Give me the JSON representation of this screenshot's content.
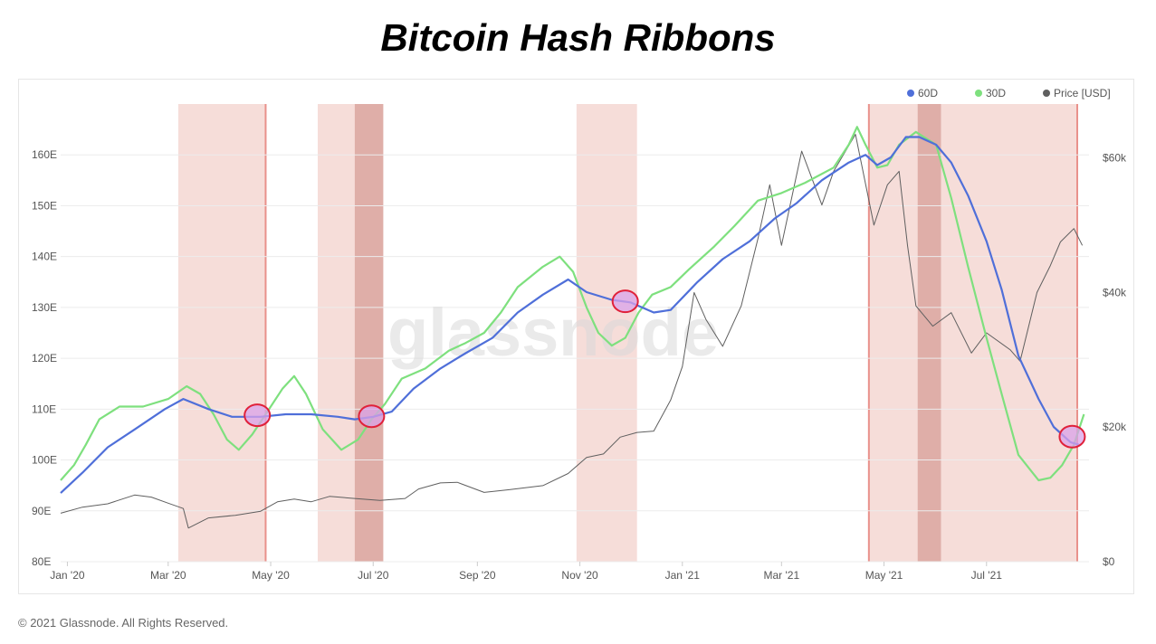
{
  "title": "Bitcoin Hash Ribbons",
  "watermark": "glassnode",
  "footer": "© 2021 Glassnode. All Rights Reserved.",
  "colors": {
    "sma60": "#4f6fd9",
    "sma30": "#7ee07e",
    "price": "#5f5f5f",
    "capitulation_light": "#f6ddd9",
    "capitulation_dark": "#dfaea8",
    "marker_fill": "#d9a2e8",
    "marker_stroke": "#e0213a"
  },
  "chart_data": {
    "type": "line",
    "title": "Bitcoin Hash Ribbons",
    "x_range": [
      "2019-12-28",
      "2021-08-31"
    ],
    "x_ticks": [
      "Jan '20",
      "Mar '20",
      "May '20",
      "Jul '20",
      "Sep '20",
      "Nov '20",
      "Jan '21",
      "Mar '21",
      "May '21",
      "Jul '21"
    ],
    "x_tick_dates": [
      "2020-01-01",
      "2020-03-01",
      "2020-05-01",
      "2020-07-01",
      "2020-09-01",
      "2020-11-01",
      "2021-01-01",
      "2021-03-01",
      "2021-05-01",
      "2021-07-01"
    ],
    "y_left": {
      "label": "",
      "ticks": [
        "80E",
        "90E",
        "100E",
        "110E",
        "120E",
        "130E",
        "140E",
        "150E",
        "160E"
      ],
      "range": [
        80,
        170
      ]
    },
    "y_right": {
      "label": "",
      "ticks": [
        "$0",
        "$20k",
        "$40k",
        "$60k"
      ],
      "tick_values": [
        0,
        20000,
        40000,
        60000
      ],
      "range": [
        0,
        68000
      ]
    },
    "legend": {
      "placement": "top-right",
      "items": [
        "60D",
        "30D",
        "Price [USD]"
      ]
    },
    "grid": "horizontal",
    "series": [
      {
        "name": "60D",
        "axis": "left",
        "points": [
          [
            "2019-12-28",
            93.5
          ],
          [
            "2020-01-10",
            97.5
          ],
          [
            "2020-01-25",
            102.5
          ],
          [
            "2020-02-10",
            106
          ],
          [
            "2020-02-28",
            110
          ],
          [
            "2020-03-10",
            112
          ],
          [
            "2020-03-25",
            110
          ],
          [
            "2020-04-08",
            108.5
          ],
          [
            "2020-04-25",
            108.5
          ],
          [
            "2020-05-10",
            109
          ],
          [
            "2020-05-25",
            109
          ],
          [
            "2020-06-10",
            108.5
          ],
          [
            "2020-06-20",
            108
          ],
          [
            "2020-07-01",
            108.5
          ],
          [
            "2020-07-12",
            109.5
          ],
          [
            "2020-07-25",
            114
          ],
          [
            "2020-08-10",
            118
          ],
          [
            "2020-08-25",
            121
          ],
          [
            "2020-09-10",
            124
          ],
          [
            "2020-09-25",
            129
          ],
          [
            "2020-10-10",
            132.5
          ],
          [
            "2020-10-25",
            135.5
          ],
          [
            "2020-11-05",
            133
          ],
          [
            "2020-11-20",
            131.5
          ],
          [
            "2020-12-01",
            131
          ],
          [
            "2020-12-15",
            129
          ],
          [
            "2020-12-25",
            129.5
          ],
          [
            "2021-01-10",
            135
          ],
          [
            "2021-01-25",
            139.5
          ],
          [
            "2021-02-10",
            143
          ],
          [
            "2021-02-25",
            147.5
          ],
          [
            "2021-03-10",
            150.5
          ],
          [
            "2021-03-25",
            155
          ],
          [
            "2021-04-10",
            158.5
          ],
          [
            "2021-04-20",
            160
          ],
          [
            "2021-04-27",
            158
          ],
          [
            "2021-05-05",
            159.5
          ],
          [
            "2021-05-14",
            163.5
          ],
          [
            "2021-05-22",
            163.5
          ],
          [
            "2021-06-01",
            162
          ],
          [
            "2021-06-10",
            158.5
          ],
          [
            "2021-06-20",
            152
          ],
          [
            "2021-07-01",
            143
          ],
          [
            "2021-07-10",
            133.5
          ],
          [
            "2021-07-20",
            120.5
          ],
          [
            "2021-08-01",
            112
          ],
          [
            "2021-08-10",
            106.5
          ],
          [
            "2021-08-20",
            103.5
          ],
          [
            "2021-08-25",
            103
          ]
        ]
      },
      {
        "name": "30D",
        "axis": "left",
        "points": [
          [
            "2019-12-28",
            96
          ],
          [
            "2020-01-05",
            99
          ],
          [
            "2020-01-12",
            103
          ],
          [
            "2020-01-20",
            108
          ],
          [
            "2020-02-01",
            110.5
          ],
          [
            "2020-02-15",
            110.5
          ],
          [
            "2020-03-01",
            112
          ],
          [
            "2020-03-12",
            114.5
          ],
          [
            "2020-03-20",
            113
          ],
          [
            "2020-03-28",
            109
          ],
          [
            "2020-04-05",
            104
          ],
          [
            "2020-04-12",
            102
          ],
          [
            "2020-04-20",
            105
          ],
          [
            "2020-04-28",
            109
          ],
          [
            "2020-05-08",
            114
          ],
          [
            "2020-05-15",
            116.5
          ],
          [
            "2020-05-22",
            113
          ],
          [
            "2020-06-01",
            106
          ],
          [
            "2020-06-12",
            102
          ],
          [
            "2020-06-22",
            104
          ],
          [
            "2020-06-30",
            108
          ],
          [
            "2020-07-08",
            111
          ],
          [
            "2020-07-18",
            116
          ],
          [
            "2020-08-01",
            118
          ],
          [
            "2020-08-15",
            121.5
          ],
          [
            "2020-08-25",
            123
          ],
          [
            "2020-09-05",
            125
          ],
          [
            "2020-09-15",
            129
          ],
          [
            "2020-09-25",
            134
          ],
          [
            "2020-10-10",
            138
          ],
          [
            "2020-10-20",
            140
          ],
          [
            "2020-10-28",
            137
          ],
          [
            "2020-11-05",
            130
          ],
          [
            "2020-11-12",
            125
          ],
          [
            "2020-11-20",
            122.5
          ],
          [
            "2020-11-28",
            124
          ],
          [
            "2020-12-06",
            129
          ],
          [
            "2020-12-14",
            132.5
          ],
          [
            "2020-12-25",
            134
          ],
          [
            "2021-01-05",
            137.5
          ],
          [
            "2021-01-20",
            142
          ],
          [
            "2021-02-01",
            146
          ],
          [
            "2021-02-15",
            151
          ],
          [
            "2021-03-01",
            152.5
          ],
          [
            "2021-03-15",
            154.5
          ],
          [
            "2021-04-01",
            157.5
          ],
          [
            "2021-04-10",
            162
          ],
          [
            "2021-04-15",
            165.5
          ],
          [
            "2021-04-20",
            162
          ],
          [
            "2021-04-27",
            157.5
          ],
          [
            "2021-05-03",
            158
          ],
          [
            "2021-05-10",
            162
          ],
          [
            "2021-05-20",
            164.5
          ],
          [
            "2021-06-01",
            162
          ],
          [
            "2021-06-10",
            151.5
          ],
          [
            "2021-06-20",
            138
          ],
          [
            "2021-07-01",
            124
          ],
          [
            "2021-07-10",
            113
          ],
          [
            "2021-07-20",
            101
          ],
          [
            "2021-08-01",
            96
          ],
          [
            "2021-08-08",
            96.5
          ],
          [
            "2021-08-15",
            99
          ],
          [
            "2021-08-22",
            103
          ],
          [
            "2021-08-28",
            109
          ]
        ]
      },
      {
        "name": "Price [USD]",
        "axis": "right",
        "points": [
          [
            "2019-12-28",
            7200
          ],
          [
            "2020-01-10",
            8100
          ],
          [
            "2020-01-25",
            8600
          ],
          [
            "2020-02-10",
            9900
          ],
          [
            "2020-02-20",
            9600
          ],
          [
            "2020-03-01",
            8700
          ],
          [
            "2020-03-10",
            7900
          ],
          [
            "2020-03-13",
            5000
          ],
          [
            "2020-03-25",
            6500
          ],
          [
            "2020-04-10",
            6900
          ],
          [
            "2020-04-25",
            7500
          ],
          [
            "2020-05-05",
            8900
          ],
          [
            "2020-05-15",
            9300
          ],
          [
            "2020-05-25",
            8900
          ],
          [
            "2020-06-05",
            9700
          ],
          [
            "2020-06-20",
            9400
          ],
          [
            "2020-07-05",
            9100
          ],
          [
            "2020-07-20",
            9400
          ],
          [
            "2020-07-28",
            10800
          ],
          [
            "2020-08-10",
            11700
          ],
          [
            "2020-08-20",
            11800
          ],
          [
            "2020-09-05",
            10300
          ],
          [
            "2020-09-20",
            10700
          ],
          [
            "2020-10-10",
            11300
          ],
          [
            "2020-10-25",
            13100
          ],
          [
            "2020-11-05",
            15500
          ],
          [
            "2020-11-15",
            16000
          ],
          [
            "2020-11-25",
            18500
          ],
          [
            "2020-12-05",
            19200
          ],
          [
            "2020-12-15",
            19400
          ],
          [
            "2020-12-25",
            24000
          ],
          [
            "2021-01-01",
            29000
          ],
          [
            "2021-01-08",
            40000
          ],
          [
            "2021-01-15",
            36000
          ],
          [
            "2021-01-25",
            32000
          ],
          [
            "2021-02-05",
            38000
          ],
          [
            "2021-02-15",
            48000
          ],
          [
            "2021-02-22",
            56000
          ],
          [
            "2021-03-01",
            47000
          ],
          [
            "2021-03-13",
            61000
          ],
          [
            "2021-03-25",
            53000
          ],
          [
            "2021-04-01",
            58000
          ],
          [
            "2021-04-14",
            63500
          ],
          [
            "2021-04-25",
            50000
          ],
          [
            "2021-05-03",
            56000
          ],
          [
            "2021-05-10",
            58000
          ],
          [
            "2021-05-15",
            47000
          ],
          [
            "2021-05-20",
            38000
          ],
          [
            "2021-05-30",
            35000
          ],
          [
            "2021-06-10",
            37000
          ],
          [
            "2021-06-22",
            31000
          ],
          [
            "2021-07-01",
            34000
          ],
          [
            "2021-07-15",
            31500
          ],
          [
            "2021-07-21",
            29800
          ],
          [
            "2021-07-31",
            40000
          ],
          [
            "2021-08-08",
            44000
          ],
          [
            "2021-08-14",
            47500
          ],
          [
            "2021-08-22",
            49500
          ],
          [
            "2021-08-27",
            47000
          ]
        ]
      }
    ],
    "capitulation_bands": [
      {
        "start": "2020-03-07",
        "end": "2020-04-28",
        "shade": "light"
      },
      {
        "start": "2020-05-29",
        "end": "2020-06-20",
        "shade": "light"
      },
      {
        "start": "2020-06-20",
        "end": "2020-07-07",
        "shade": "dark"
      },
      {
        "start": "2020-10-30",
        "end": "2020-12-05",
        "shade": "light"
      },
      {
        "start": "2021-04-22",
        "end": "2021-05-21",
        "shade": "light"
      },
      {
        "start": "2021-05-21",
        "end": "2021-06-04",
        "shade": "dark"
      },
      {
        "start": "2021-06-04",
        "end": "2021-08-24",
        "shade": "light"
      }
    ],
    "band_edges": [
      "2020-04-28",
      "2021-04-22",
      "2021-08-24"
    ],
    "crossover_markers": [
      {
        "date": "2020-04-23",
        "value": 108.8
      },
      {
        "date": "2020-06-30",
        "value": 108.6
      },
      {
        "date": "2020-11-28",
        "value": 131.2
      },
      {
        "date": "2021-08-21",
        "value": 104.6
      }
    ]
  }
}
